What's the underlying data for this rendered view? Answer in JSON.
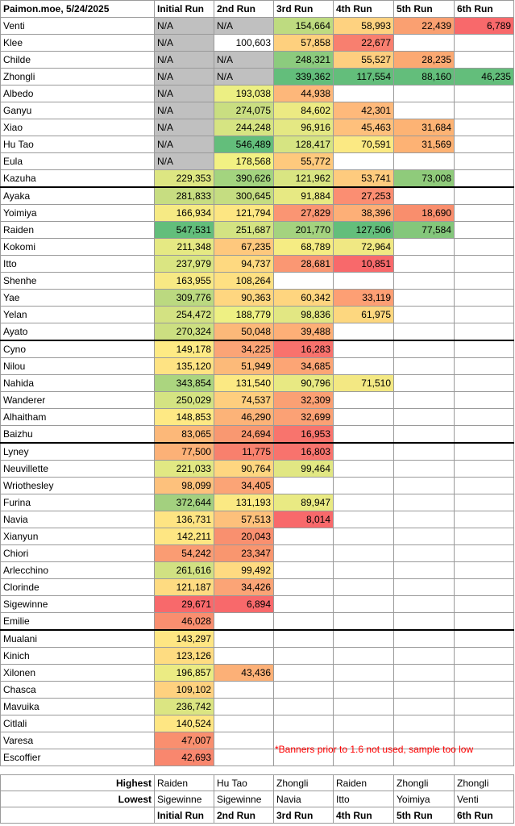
{
  "header": {
    "title": "Paimon.moe, 5/24/2025",
    "runs": [
      "Initial Run",
      "2nd Run",
      "3rd Run",
      "4th Run",
      "5th Run",
      "6th Run"
    ]
  },
  "color_scale": {
    "low": "#f8696b",
    "mid": "#ffeb84",
    "high": "#63be7b",
    "na": "#c0c0c0"
  },
  "rows": [
    {
      "name": "Venti",
      "cells": [
        "N/A",
        "N/A",
        "154,664",
        "58,993",
        "22,439",
        "6,789"
      ],
      "colors": [
        "na",
        "na",
        "#bedb80",
        "#fed280",
        "#faa071",
        "#f8696b"
      ]
    },
    {
      "name": "Klee",
      "cells": [
        "N/A",
        "100,603",
        "57,858",
        "22,677",
        "",
        ""
      ],
      "colors": [
        "na",
        "",
        "#fed07e",
        "#f87f6f",
        "",
        ""
      ]
    },
    {
      "name": "Childe",
      "cells": [
        "N/A",
        "N/A",
        "248,321",
        "55,527",
        "28,235",
        ""
      ],
      "colors": [
        "na",
        "na",
        "#8ccb7e",
        "#fece7f",
        "#fca972",
        ""
      ]
    },
    {
      "name": "Zhongli",
      "cells": [
        "N/A",
        "N/A",
        "339,362",
        "117,554",
        "88,160",
        "46,235"
      ],
      "colors": [
        "na",
        "na",
        "#63be7b",
        "#63be7b",
        "#63be7b",
        "#63be7b"
      ]
    },
    {
      "name": "Albedo",
      "cells": [
        "N/A",
        "193,038",
        "44,938",
        "",
        "",
        ""
      ],
      "colors": [
        "na",
        "#ecef83",
        "#fdb77a",
        "",
        "",
        ""
      ]
    },
    {
      "name": "Ganyu",
      "cells": [
        "N/A",
        "274,075",
        "84,602",
        "42,301",
        "",
        ""
      ],
      "colors": [
        "na",
        "#c9de81",
        "#ecea83",
        "#feb97b",
        "",
        ""
      ]
    },
    {
      "name": "Xiao",
      "cells": [
        "N/A",
        "244,248",
        "96,916",
        "45,463",
        "31,684",
        ""
      ],
      "colors": [
        "na",
        "#d6e482",
        "#e4e883",
        "#fec07c",
        "#fdb374",
        ""
      ]
    },
    {
      "name": "Hu Tao",
      "cells": [
        "N/A",
        "546,489",
        "128,417",
        "70,591",
        "31,569",
        ""
      ],
      "colors": [
        "na",
        "#63be7b",
        "#d6e482",
        "#fbe983",
        "#fdb274",
        ""
      ]
    },
    {
      "name": "Eula",
      "cells": [
        "N/A",
        "178,568",
        "55,772",
        "",
        "",
        ""
      ],
      "colors": [
        "na",
        "#f2f183",
        "#fec97d",
        "",
        "",
        ""
      ]
    },
    {
      "name": "Kazuha",
      "cells": [
        "229,353",
        "390,626",
        "121,962",
        "53,741",
        "73,008",
        ""
      ],
      "colors": [
        "#dde682",
        "#a3d47f",
        "#d9e582",
        "#fecb7e",
        "#8fcb7b",
        ""
      ]
    },
    {
      "name": "Ayaka",
      "cells": [
        "281,833",
        "300,645",
        "91,884",
        "27,253",
        "",
        ""
      ],
      "colors": [
        "#c7dd81",
        "#c5dd81",
        "#e7e983",
        "#fb8e72",
        "",
        ""
      ],
      "group": true
    },
    {
      "name": "Yoimiya",
      "cells": [
        "166,934",
        "121,794",
        "27,829",
        "38,396",
        "18,690",
        ""
      ],
      "colors": [
        "#f6ea84",
        "#fde682",
        "#fa9573",
        "#fdaf77",
        "#f98e6d",
        ""
      ]
    },
    {
      "name": "Raiden",
      "cells": [
        "547,531",
        "251,687",
        "201,770",
        "127,506",
        "77,584",
        ""
      ],
      "colors": [
        "#63be7b",
        "#d3e382",
        "#a4d37f",
        "#63be7b",
        "#84c77b",
        ""
      ]
    },
    {
      "name": "Kokomi",
      "cells": [
        "211,348",
        "67,235",
        "68,789",
        "72,964",
        "",
        ""
      ],
      "colors": [
        "#e5e983",
        "#fec87d",
        "#f5ec83",
        "#f0e883",
        "",
        ""
      ]
    },
    {
      "name": "Itto",
      "cells": [
        "237,979",
        "94,737",
        "28,681",
        "10,851",
        "",
        ""
      ],
      "colors": [
        "#dae582",
        "#fed980",
        "#fa9773",
        "#f8696b",
        "",
        ""
      ]
    },
    {
      "name": "Shenhe",
      "cells": [
        "163,955",
        "108,264",
        "",
        "",
        "",
        ""
      ],
      "colors": [
        "#f7e984",
        "#fee082",
        "",
        "",
        "",
        ""
      ]
    },
    {
      "name": "Yae",
      "cells": [
        "309,776",
        "90,363",
        "60,342",
        "33,119",
        "",
        ""
      ],
      "colors": [
        "#bbd980",
        "#fed680",
        "#fed57f",
        "#fd9f74",
        "",
        ""
      ]
    },
    {
      "name": "Yelan",
      "cells": [
        "254,472",
        "188,779",
        "98,836",
        "61,975",
        "",
        ""
      ],
      "colors": [
        "#d3e282",
        "#eef083",
        "#e2e783",
        "#fdd77f",
        "",
        ""
      ]
    },
    {
      "name": "Ayato",
      "cells": [
        "270,324",
        "50,048",
        "39,488",
        "",
        "",
        ""
      ],
      "colors": [
        "#ccdf81",
        "#fcb879",
        "#fdaf77",
        "",
        "",
        ""
      ]
    },
    {
      "name": "Cyno",
      "cells": [
        "149,178",
        "34,225",
        "16,283",
        "",
        "",
        ""
      ],
      "colors": [
        "#feea84",
        "#fba476",
        "#f8726d",
        "",
        "",
        ""
      ],
      "group": true
    },
    {
      "name": "Nilou",
      "cells": [
        "135,120",
        "51,949",
        "34,685",
        "",
        "",
        ""
      ],
      "colors": [
        "#fee383",
        "#fcba79",
        "#fca575",
        "",
        "",
        ""
      ]
    },
    {
      "name": "Nahida",
      "cells": [
        "343,854",
        "131,540",
        "90,796",
        "71,510",
        "",
        ""
      ],
      "colors": [
        "#abd57f",
        "#fbe983",
        "#e8e983",
        "#f3e883",
        "",
        ""
      ]
    },
    {
      "name": "Wanderer",
      "cells": [
        "250,029",
        "74,537",
        "32,309",
        "",
        "",
        ""
      ],
      "colors": [
        "#d4e382",
        "#fece7e",
        "#fba074",
        "",
        "",
        ""
      ]
    },
    {
      "name": "Alhaitham",
      "cells": [
        "148,853",
        "46,290",
        "32,699",
        "",
        "",
        ""
      ],
      "colors": [
        "#fee984",
        "#fcb378",
        "#fba175",
        "",
        "",
        ""
      ]
    },
    {
      "name": "Baizhu",
      "cells": [
        "83,065",
        "24,694",
        "16,953",
        "",
        "",
        ""
      ],
      "colors": [
        "#fcb879",
        "#f99871",
        "#f8746d",
        "",
        "",
        ""
      ]
    },
    {
      "name": "Lyney",
      "cells": [
        "77,500",
        "11,775",
        "16,803",
        "",
        "",
        ""
      ],
      "colors": [
        "#fcb177",
        "#f8806d",
        "#f8736d",
        "",
        "",
        ""
      ],
      "group": true
    },
    {
      "name": "Neuvillette",
      "cells": [
        "221,033",
        "90,764",
        "99,464",
        "",
        "",
        ""
      ],
      "colors": [
        "#e1e883",
        "#fed680",
        "#e1e783",
        "",
        "",
        ""
      ]
    },
    {
      "name": "Wriothesley",
      "cells": [
        "98,099",
        "34,405",
        "",
        "",
        "",
        ""
      ],
      "colors": [
        "#fdc17c",
        "#fba476",
        "",
        "",
        "",
        ""
      ]
    },
    {
      "name": "Furina",
      "cells": [
        "372,644",
        "131,193",
        "89,947",
        "",
        "",
        ""
      ],
      "colors": [
        "#a3d07f",
        "#fbe983",
        "#e9ea83",
        "",
        "",
        ""
      ]
    },
    {
      "name": "Navia",
      "cells": [
        "136,731",
        "57,513",
        "8,014",
        "",
        "",
        ""
      ],
      "colors": [
        "#fee483",
        "#fdc07b",
        "#f8696b",
        "",
        "",
        ""
      ]
    },
    {
      "name": "Xianyun",
      "cells": [
        "142,211",
        "20,043",
        "",
        "",
        "",
        ""
      ],
      "colors": [
        "#fee683",
        "#f9906f",
        "",
        "",
        "",
        ""
      ]
    },
    {
      "name": "Chiori",
      "cells": [
        "54,242",
        "23,347",
        "",
        "",
        "",
        ""
      ],
      "colors": [
        "#fa9c73",
        "#f9966f",
        "",
        "",
        "",
        ""
      ]
    },
    {
      "name": "Arlecchino",
      "cells": [
        "261,616",
        "99,492",
        "",
        "",
        "",
        ""
      ],
      "colors": [
        "#d1e182",
        "#feda81",
        "",
        "",
        "",
        ""
      ]
    },
    {
      "name": "Clorinde",
      "cells": [
        "121,187",
        "34,426",
        "",
        "",
        "",
        ""
      ],
      "colors": [
        "#fedb81",
        "#fba476",
        "",
        "",
        "",
        ""
      ]
    },
    {
      "name": "Sigewinne",
      "cells": [
        "29,671",
        "6,894",
        "",
        "",
        "",
        ""
      ],
      "colors": [
        "#f8696b",
        "#f8696b",
        "",
        "",
        "",
        ""
      ]
    },
    {
      "name": "Emilie",
      "cells": [
        "46,028",
        "",
        "",
        "",
        "",
        ""
      ],
      "colors": [
        "#f98e6f",
        "",
        "",
        "",
        "",
        ""
      ]
    },
    {
      "name": "Mualani",
      "cells": [
        "143,297",
        "",
        "",
        "",
        "",
        ""
      ],
      "colors": [
        "#fee683",
        "",
        "",
        "",
        "",
        ""
      ],
      "group": true
    },
    {
      "name": "Kinich",
      "cells": [
        "123,126",
        "",
        "",
        "",
        "",
        ""
      ],
      "colors": [
        "#fedc81",
        "",
        "",
        "",
        "",
        ""
      ]
    },
    {
      "name": "Xilonen",
      "cells": [
        "196,857",
        "43,436",
        "",
        "",
        "",
        ""
      ],
      "colors": [
        "#ebeb83",
        "#fcb077",
        "",
        "",
        "",
        ""
      ]
    },
    {
      "name": "Chasca",
      "cells": [
        "109,102",
        "",
        "",
        "",
        "",
        ""
      ],
      "colors": [
        "#fed17f",
        "",
        "",
        "",
        "",
        ""
      ]
    },
    {
      "name": "Mavuika",
      "cells": [
        "236,742",
        "",
        "",
        "",
        "",
        ""
      ],
      "colors": [
        "#dbe582",
        "",
        "",
        "",
        "",
        ""
      ]
    },
    {
      "name": "Citlali",
      "cells": [
        "140,524",
        "",
        "",
        "",
        "",
        ""
      ],
      "colors": [
        "#fee683",
        "",
        "",
        "",
        "",
        ""
      ]
    },
    {
      "name": "Varesa",
      "cells": [
        "47,007",
        "",
        "",
        "",
        "",
        ""
      ],
      "colors": [
        "#f98f6f",
        "",
        "",
        "",
        "",
        ""
      ]
    },
    {
      "name": "Escoffier",
      "cells": [
        "42,693",
        "",
        "",
        "",
        "",
        ""
      ],
      "colors": [
        "#f9876e",
        "",
        "",
        "",
        "",
        ""
      ]
    }
  ],
  "note": "*Banners prior to 1.6 not used, sample too low",
  "summary": {
    "highest_label": "Highest",
    "lowest_label": "Lowest",
    "highest": [
      "Raiden",
      "Hu Tao",
      "Zhongli",
      "Raiden",
      "Zhongli",
      "Zhongli"
    ],
    "lowest": [
      "Sigewinne",
      "Sigewinne",
      "Navia",
      "Itto",
      "Yoimiya",
      "Venti"
    ],
    "runs": [
      "Initial Run",
      "2nd Run",
      "3rd Run",
      "4th Run",
      "5th Run",
      "6th Run"
    ]
  }
}
